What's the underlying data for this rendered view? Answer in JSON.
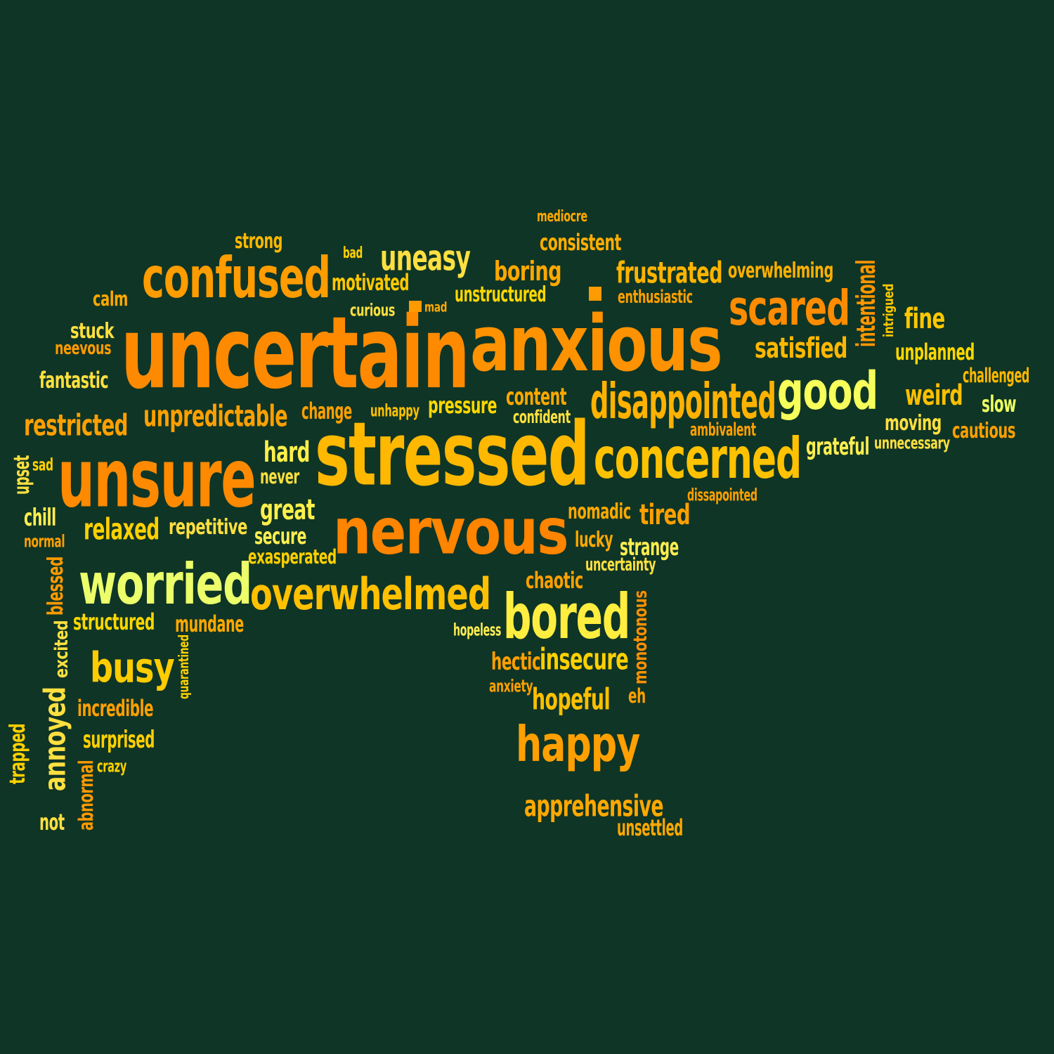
{
  "colors": {
    "background": "#0f3526",
    "palette": [
      "#ff8400",
      "#ff9a00",
      "#ffb400",
      "#ffc800",
      "#ffe236",
      "#f4ff58",
      "#e9ff6b"
    ]
  },
  "words": [
    {
      "text": "uncertain",
      "color": "#ff8a00"
    },
    {
      "text": "anxious",
      "color": "#ff9200"
    },
    {
      "text": "stressed",
      "color": "#ffb800"
    },
    {
      "text": "unsure",
      "color": "#ff8a00"
    },
    {
      "text": "nervous",
      "color": "#ff8400"
    },
    {
      "text": "worried",
      "color": "#ecff6a"
    },
    {
      "text": "overwhelmed",
      "color": "#ffc000"
    },
    {
      "text": "bored",
      "color": "#ffee40"
    },
    {
      "text": "confused",
      "color": "#ff9c00"
    },
    {
      "text": "concerned",
      "color": "#ffc200"
    },
    {
      "text": "disappointed",
      "color": "#ffb200"
    },
    {
      "text": "good",
      "color": "#f7ff5a"
    },
    {
      "text": "scared",
      "color": "#ff8c00"
    },
    {
      "text": "happy",
      "color": "#ffa000"
    },
    {
      "text": "busy",
      "color": "#ffcc00"
    },
    {
      "text": "annoyed",
      "color": "#ffe040"
    },
    {
      "text": "uneasy",
      "color": "#ffe040"
    },
    {
      "text": "frustrated",
      "color": "#ffb400"
    },
    {
      "text": "boring",
      "color": "#ffa800"
    },
    {
      "text": "restricted",
      "color": "#ffa000"
    },
    {
      "text": "unpredictable",
      "color": "#ffa000"
    },
    {
      "text": "hard",
      "color": "#fff04a"
    },
    {
      "text": "great",
      "color": "#fff04a"
    },
    {
      "text": "relaxed",
      "color": "#ffd000"
    },
    {
      "text": "insecure",
      "color": "#ffd000"
    },
    {
      "text": "hopeful",
      "color": "#ffc000"
    },
    {
      "text": "apprehensive",
      "color": "#ffa800"
    },
    {
      "text": "satisfied",
      "color": "#ffb800"
    },
    {
      "text": "weird",
      "color": "#ffc000"
    },
    {
      "text": "fine",
      "color": "#ffc800"
    },
    {
      "text": "tired",
      "color": "#ffa000"
    },
    {
      "text": "motivated",
      "color": "#ffc800"
    },
    {
      "text": "consistent",
      "color": "#ffae00"
    },
    {
      "text": "overwhelming",
      "color": "#ffb000"
    },
    {
      "text": "unstructured",
      "color": "#ffd700"
    },
    {
      "text": "intentional",
      "color": "#ff9600"
    },
    {
      "text": "intrigued",
      "color": "#ffc800"
    },
    {
      "text": "enthusiastic",
      "color": "#ffa000"
    },
    {
      "text": "strong",
      "color": "#ffb800"
    },
    {
      "text": "mediocre",
      "color": "#ffa800"
    },
    {
      "text": "bad",
      "color": "#ffd000"
    },
    {
      "text": "curious",
      "color": "#ffe040"
    },
    {
      "text": "mad",
      "color": "#ffa800"
    },
    {
      "text": "calm",
      "color": "#ffa800"
    },
    {
      "text": "stuck",
      "color": "#ffe040"
    },
    {
      "text": "neevous",
      "color": "#ff9a00"
    },
    {
      "text": "fantastic",
      "color": "#ffe040"
    },
    {
      "text": "unplanned",
      "color": "#ffd700"
    },
    {
      "text": "challenged",
      "color": "#ffb800"
    },
    {
      "text": "slow",
      "color": "#f0ff60"
    },
    {
      "text": "moving",
      "color": "#ffe040"
    },
    {
      "text": "cautious",
      "color": "#ffa000"
    },
    {
      "text": "unnecessary",
      "color": "#ffe040"
    },
    {
      "text": "grateful",
      "color": "#ffee50"
    },
    {
      "text": "ambivalent",
      "color": "#ffa000"
    },
    {
      "text": "content",
      "color": "#ffa800"
    },
    {
      "text": "confident",
      "color": "#ffe040"
    },
    {
      "text": "change",
      "color": "#ffa000"
    },
    {
      "text": "unhappy",
      "color": "#ffc000"
    },
    {
      "text": "pressure",
      "color": "#ffd700"
    },
    {
      "text": "upset",
      "color": "#ffe040"
    },
    {
      "text": "sad",
      "color": "#ffd000"
    },
    {
      "text": "never",
      "color": "#ffe040"
    },
    {
      "text": "chill",
      "color": "#ffee50"
    },
    {
      "text": "normal",
      "color": "#ffa000"
    },
    {
      "text": "repetitive",
      "color": "#ffe040"
    },
    {
      "text": "secure",
      "color": "#ffee50"
    },
    {
      "text": "exasperated",
      "color": "#ffd000"
    },
    {
      "text": "nomadic",
      "color": "#ffa800"
    },
    {
      "text": "lucky",
      "color": "#ffa800"
    },
    {
      "text": "strange",
      "color": "#ffee50"
    },
    {
      "text": "dissapointed",
      "color": "#ffa000"
    },
    {
      "text": "uncertainty",
      "color": "#ffe040"
    },
    {
      "text": "chaotic",
      "color": "#ffa000"
    },
    {
      "text": "blessed",
      "color": "#ff9a00"
    },
    {
      "text": "structured",
      "color": "#ffd700"
    },
    {
      "text": "mundane",
      "color": "#ffa800"
    },
    {
      "text": "excited",
      "color": "#ffe040"
    },
    {
      "text": "quarantined",
      "color": "#ffd000"
    },
    {
      "text": "hopeless",
      "color": "#ffee50"
    },
    {
      "text": "monotonous",
      "color": "#ff9000"
    },
    {
      "text": "hectic",
      "color": "#ffa000"
    },
    {
      "text": "anxiety",
      "color": "#ffa000"
    },
    {
      "text": "eh",
      "color": "#ffa000"
    },
    {
      "text": "incredible",
      "color": "#ffa000"
    },
    {
      "text": "surprised",
      "color": "#ffd000"
    },
    {
      "text": "crazy",
      "color": "#ffd000"
    },
    {
      "text": "trapped",
      "color": "#ffd000"
    },
    {
      "text": "abnormal",
      "color": "#ff9a00"
    },
    {
      "text": "not",
      "color": "#ffe040"
    },
    {
      "text": "unsettled",
      "color": "#ffa800"
    }
  ]
}
